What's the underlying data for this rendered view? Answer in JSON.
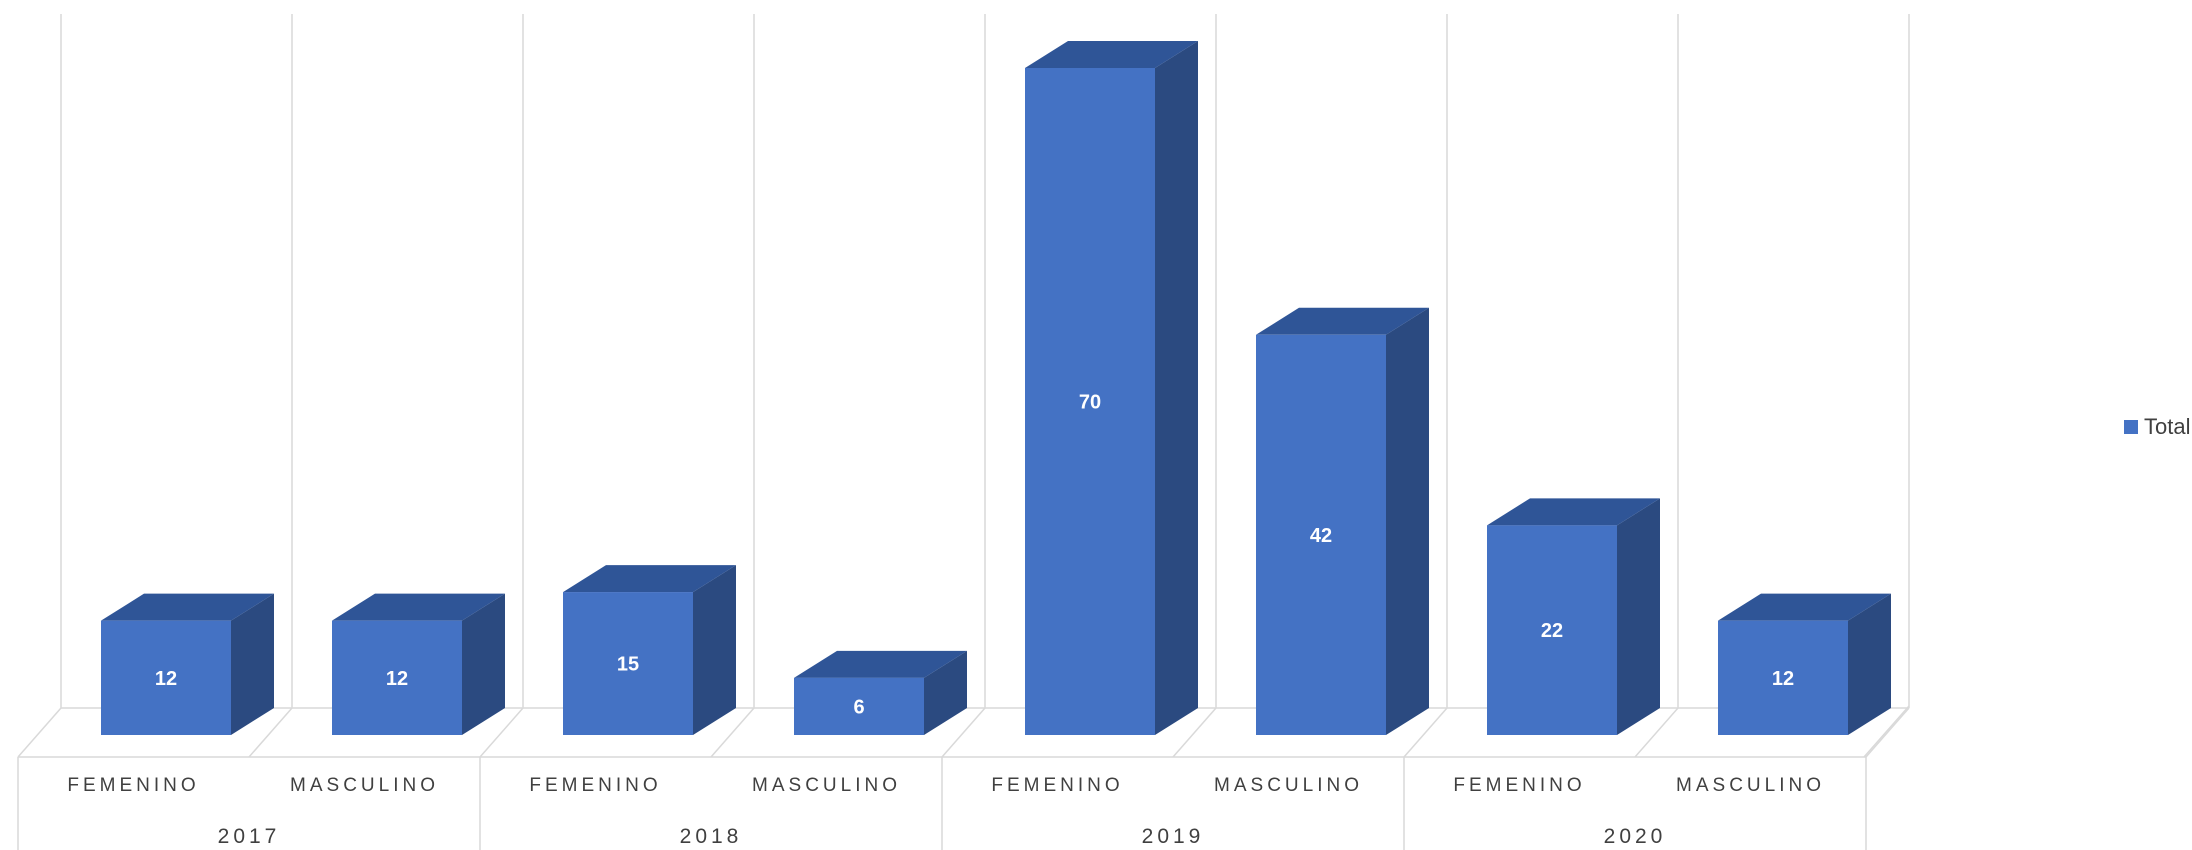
{
  "chart_data": {
    "type": "bar",
    "categories": [
      {
        "sub": "FEMENINO",
        "group": "2017"
      },
      {
        "sub": "MASCULINO",
        "group": "2017"
      },
      {
        "sub": "FEMENINO",
        "group": "2018"
      },
      {
        "sub": "MASCULINO",
        "group": "2018"
      },
      {
        "sub": "FEMENINO",
        "group": "2019"
      },
      {
        "sub": "MASCULINO",
        "group": "2019"
      },
      {
        "sub": "FEMENINO",
        "group": "2020"
      },
      {
        "sub": "MASCULINO",
        "group": "2020"
      }
    ],
    "groups": [
      "2017",
      "2018",
      "2019",
      "2020"
    ],
    "series": [
      {
        "name": "Total",
        "values": [
          12,
          12,
          15,
          6,
          70,
          42,
          22,
          12
        ]
      }
    ],
    "ylim": [
      0,
      70
    ],
    "grid": true,
    "three_d": true,
    "data_labels": true,
    "legend_position": "right",
    "colors": {
      "bar_front": "#4472C4",
      "bar_side": "#2B4A80",
      "bar_top": "#2F5597",
      "grid": "#D9D9D9",
      "text": "#404040"
    }
  }
}
